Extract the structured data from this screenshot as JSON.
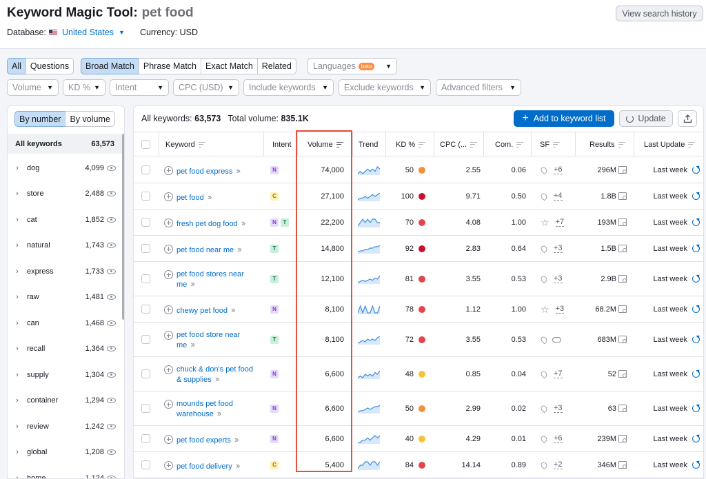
{
  "header": {
    "title": "Keyword Magic Tool:",
    "query": "pet food",
    "database_label": "Database:",
    "database_value": "United States",
    "currency_label": "Currency: USD",
    "history_button": "View search history"
  },
  "filters": {
    "type_tabs": [
      "All",
      "Questions"
    ],
    "match_tabs": [
      "Broad Match",
      "Phrase Match",
      "Exact Match",
      "Related"
    ],
    "languages": "Languages",
    "beta": "beta",
    "dropdowns": [
      "Volume",
      "KD %",
      "Intent",
      "CPC (USD)",
      "Include keywords",
      "Exclude keywords",
      "Advanced filters"
    ]
  },
  "sidebar": {
    "toggle": [
      "By number",
      "By volume"
    ],
    "all_label": "All keywords",
    "all_count": "63,573",
    "items": [
      {
        "label": "dog",
        "count": "4,099"
      },
      {
        "label": "store",
        "count": "2,488"
      },
      {
        "label": "cat",
        "count": "1,852"
      },
      {
        "label": "natural",
        "count": "1,743"
      },
      {
        "label": "express",
        "count": "1,733"
      },
      {
        "label": "raw",
        "count": "1,481"
      },
      {
        "label": "can",
        "count": "1,468"
      },
      {
        "label": "recall",
        "count": "1,364"
      },
      {
        "label": "supply",
        "count": "1,304"
      },
      {
        "label": "container",
        "count": "1,294"
      },
      {
        "label": "review",
        "count": "1,242"
      },
      {
        "label": "global",
        "count": "1,208"
      },
      {
        "label": "home",
        "count": "1,124"
      }
    ]
  },
  "summary": {
    "all_keywords_label": "All keywords:",
    "all_keywords_value": "63,573",
    "total_volume_label": "Total volume:",
    "total_volume_value": "835.1K"
  },
  "actions": {
    "add": "Add to keyword list",
    "update": "Update"
  },
  "columns": [
    "Keyword",
    "Intent",
    "Volume",
    "Trend",
    "KD %",
    "CPC (...",
    "Com.",
    "SF",
    "Results",
    "Last Update"
  ],
  "colors": {
    "accent": "#006dca",
    "kd_orange": "#f0923a",
    "kd_red": "#e4454c",
    "kd_darkred": "#c8102e",
    "kd_yellow": "#f5c338",
    "highlight": "#e2533b"
  },
  "rows": [
    {
      "kw": [
        "pet food express"
      ],
      "intent": [
        "N"
      ],
      "volume": "74,000",
      "trend": [
        3,
        4,
        3,
        4,
        5,
        4,
        5,
        4,
        6,
        5
      ],
      "kd": "50",
      "kd_color": "#f0923a",
      "cpc": "2.55",
      "com": "0.06",
      "sf_icon": "pin",
      "sf_more": "+6",
      "results": "296M",
      "update": "Last week"
    },
    {
      "kw": [
        "pet food"
      ],
      "intent": [
        "C"
      ],
      "volume": "27,100",
      "trend": [
        3,
        4,
        4,
        5,
        4,
        5,
        6,
        5,
        6,
        7
      ],
      "kd": "100",
      "kd_color": "#c8102e",
      "cpc": "9.71",
      "com": "0.50",
      "sf_icon": "pin",
      "sf_more": "+4",
      "results": "1.8B",
      "update": "Last week"
    },
    {
      "kw": [
        "fresh pet dog food"
      ],
      "intent": [
        "N",
        "T"
      ],
      "volume": "22,200",
      "trend": [
        4,
        5,
        6,
        5,
        6,
        5,
        6,
        6,
        5,
        5
      ],
      "kd": "70",
      "kd_color": "#e4454c",
      "cpc": "4.08",
      "com": "1.00",
      "sf_icon": "star",
      "sf_more": "+7",
      "results": "193M",
      "update": "Last week"
    },
    {
      "kw": [
        "pet food near me"
      ],
      "intent": [
        "T"
      ],
      "volume": "14,800",
      "trend": [
        2,
        3,
        3,
        4,
        4,
        5,
        5,
        6,
        6,
        7
      ],
      "kd": "92",
      "kd_color": "#c8102e",
      "cpc": "2.83",
      "com": "0.64",
      "sf_icon": "pin",
      "sf_more": "+3",
      "results": "1.5B",
      "update": "Last week"
    },
    {
      "kw": [
        "pet food stores near",
        "me"
      ],
      "intent": [
        "T"
      ],
      "volume": "12,100",
      "trend": [
        2,
        3,
        4,
        3,
        4,
        5,
        4,
        6,
        5,
        8
      ],
      "kd": "81",
      "kd_color": "#e4454c",
      "cpc": "3.55",
      "com": "0.53",
      "sf_icon": "pin",
      "sf_more": "+3",
      "results": "2.9B",
      "update": "Last week"
    },
    {
      "kw": [
        "chewy pet food"
      ],
      "intent": [
        "N"
      ],
      "volume": "8,100",
      "trend": [
        5,
        6,
        5,
        6,
        5,
        5,
        6,
        5,
        5,
        6
      ],
      "kd": "78",
      "kd_color": "#e4454c",
      "cpc": "1.12",
      "com": "1.00",
      "sf_icon": "star",
      "sf_more": "+3",
      "results": "68.2M",
      "update": "Last week"
    },
    {
      "kw": [
        "pet food store near",
        "me"
      ],
      "intent": [
        "T"
      ],
      "volume": "8,100",
      "trend": [
        2,
        3,
        4,
        3,
        5,
        4,
        5,
        4,
        6,
        7
      ],
      "kd": "72",
      "kd_color": "#e4454c",
      "cpc": "3.55",
      "com": "0.53",
      "sf_icon": "pin-link",
      "sf_more": "",
      "results": "683M",
      "update": "Last week"
    },
    {
      "kw": [
        "chuck & don's pet food",
        "& supplies"
      ],
      "intent": [
        "N"
      ],
      "volume": "6,600",
      "trend": [
        3,
        4,
        3,
        5,
        4,
        5,
        4,
        6,
        5,
        7
      ],
      "kd": "48",
      "kd_color": "#f5c338",
      "cpc": "0.85",
      "com": "0.04",
      "sf_icon": "pin",
      "sf_more": "+7",
      "results": "52",
      "update": "Last week"
    },
    {
      "kw": [
        "mounds pet food",
        "warehouse"
      ],
      "intent": [
        "N"
      ],
      "volume": "6,600",
      "trend": [
        2,
        3,
        3,
        4,
        5,
        4,
        5,
        6,
        6,
        7
      ],
      "kd": "50",
      "kd_color": "#f0923a",
      "cpc": "2.99",
      "com": "0.02",
      "sf_icon": "pin",
      "sf_more": "+3",
      "results": "63",
      "update": "Last week"
    },
    {
      "kw": [
        "pet food experts"
      ],
      "intent": [
        "N"
      ],
      "volume": "6,600",
      "trend": [
        3,
        3,
        4,
        4,
        5,
        4,
        5,
        6,
        5,
        6
      ],
      "kd": "40",
      "kd_color": "#f5c338",
      "cpc": "4.29",
      "com": "0.01",
      "sf_icon": "pin",
      "sf_more": "+6",
      "results": "239M",
      "update": "Last week"
    },
    {
      "kw": [
        "pet food delivery"
      ],
      "intent": [
        "C"
      ],
      "volume": "5,400",
      "trend": [
        4,
        5,
        5,
        6,
        6,
        5,
        6,
        6,
        5,
        6
      ],
      "kd": "84",
      "kd_color": "#e4454c",
      "cpc": "14.14",
      "com": "0.89",
      "sf_icon": "pin",
      "sf_more": "+2",
      "results": "346M",
      "update": "Last week"
    }
  ]
}
